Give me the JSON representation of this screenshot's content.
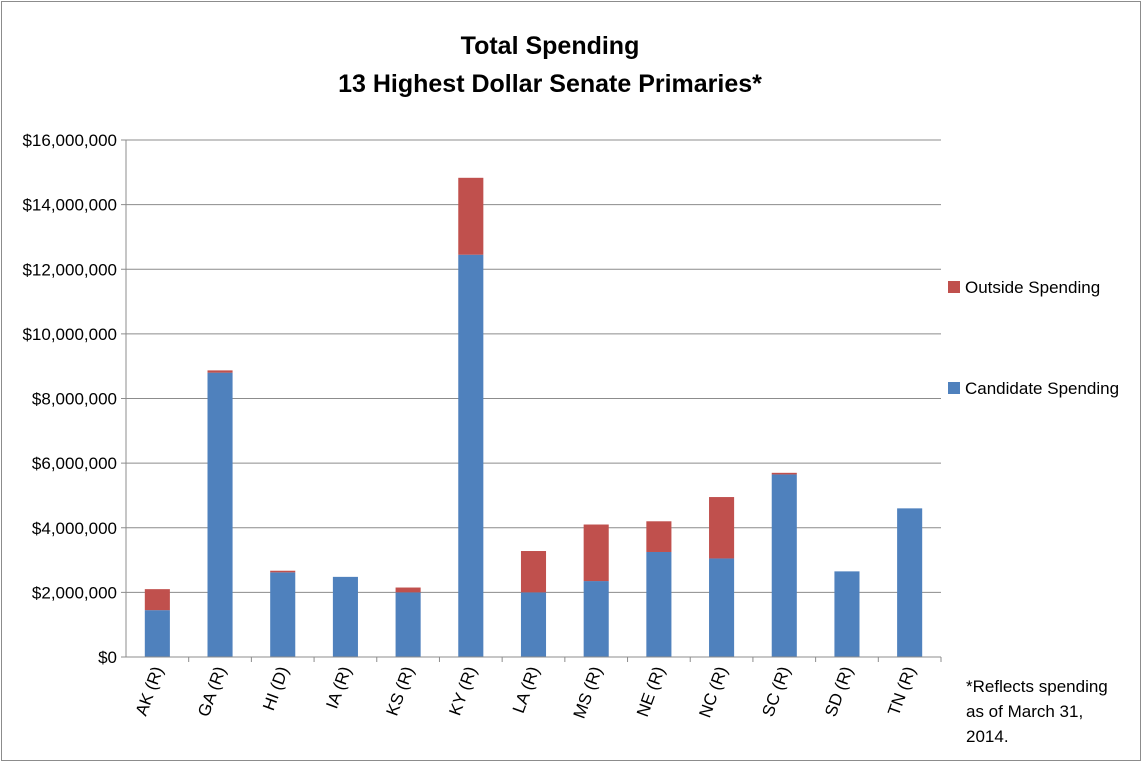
{
  "chart_data": {
    "type": "bar",
    "stacked": true,
    "title": "Total Spending",
    "subtitle": "13 Highest Dollar Senate Primaries*",
    "xlabel": "",
    "ylabel": "",
    "ylim": [
      0,
      16000000
    ],
    "y_ticks": [
      0,
      2000000,
      4000000,
      6000000,
      8000000,
      10000000,
      12000000,
      14000000,
      16000000
    ],
    "y_tick_labels": [
      "$0",
      "$2,000,000",
      "$4,000,000",
      "$6,000,000",
      "$8,000,000",
      "$10,000,000",
      "$12,000,000",
      "$14,000,000",
      "$16,000,000"
    ],
    "grid": true,
    "legend_position": "right",
    "categories": [
      "AK (R)",
      "GA (R)",
      "HI (D)",
      "IA (R)",
      "KS (R)",
      "KY (R)",
      "LA (R)",
      "MS (R)",
      "NE (R)",
      "NC (R)",
      "SC (R)",
      "SD (R)",
      "TN (R)"
    ],
    "series": [
      {
        "name": "Candidate Spending",
        "color": "#4f81bd",
        "values": [
          1450000,
          8800000,
          2620000,
          2480000,
          2000000,
          12450000,
          2000000,
          2350000,
          3250000,
          3050000,
          5650000,
          2650000,
          4600000
        ]
      },
      {
        "name": "Outside Spending",
        "color": "#c0504d",
        "values": [
          650000,
          70000,
          50000,
          0,
          150000,
          2380000,
          1280000,
          1750000,
          950000,
          1900000,
          50000,
          0,
          0
        ]
      }
    ],
    "legend_order": [
      "Outside Spending",
      "Candidate Spending"
    ],
    "annotation": {
      "lines": [
        "*Reflects spending",
        "as of March 31,",
        "2014."
      ]
    }
  }
}
